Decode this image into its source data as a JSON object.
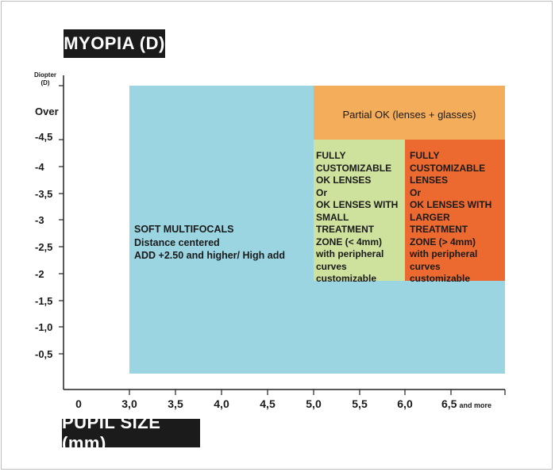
{
  "chart_data": {
    "type": "region-chart",
    "title": "MYOPIA (D)",
    "ylabel_line1": "Diopter",
    "ylabel_line2": "(D)",
    "xlabel": "PUPIL SIZE (mm)",
    "x_ticks": [
      {
        "label": "0",
        "suffix": ""
      },
      {
        "label": "3,0",
        "suffix": ""
      },
      {
        "label": "3,5",
        "suffix": ""
      },
      {
        "label": "4,0",
        "suffix": ""
      },
      {
        "label": "4,5",
        "suffix": ""
      },
      {
        "label": "5,0",
        "suffix": ""
      },
      {
        "label": "5,5",
        "suffix": ""
      },
      {
        "label": "6,0",
        "suffix": ""
      },
      {
        "label": "6,5",
        "suffix": "and more"
      }
    ],
    "y_ticks": [
      "Over",
      "-4,5",
      "-4",
      "-3,5",
      "-3",
      "-2,5",
      "-2",
      "-1,5",
      "-1,0",
      "-0,5"
    ],
    "regions": [
      {
        "name": "soft-multifocals",
        "color": "#9bd5e2",
        "x_from": "3,0",
        "x_to": "6,5 and more",
        "y_from": "0",
        "y_to": "Over",
        "text": "SOFT MULTIFOCALS\nDistance centered\nADD +2.50 and higher/ High add"
      },
      {
        "name": "partial-ok",
        "color": "#f4ad5b",
        "x_from": "5,0",
        "x_to": "6,5 and more",
        "y_from": "-4,5",
        "y_to": "Over",
        "text": "Partial OK (lenses + glasses)"
      },
      {
        "name": "small-zone",
        "color": "#cfe29d",
        "x_from": "5,0",
        "x_to": "6,0",
        "y_from": "-2",
        "y_to": "-4,5",
        "text": "FULLY\nCUSTOMIZABLE\nOK LENSES\nOr\nOK LENSES WITH\nSMALL TREATMENT\nZONE (< 4mm)\nwith peripheral\ncurves\ncustomizable"
      },
      {
        "name": "larger-zone",
        "color": "#ec6a30",
        "x_from": "6,0",
        "x_to": "6,5 and more",
        "y_from": "-2",
        "y_to": "-4,5",
        "text": "FULLY\nCUSTOMIZABLE\nLENSES\nOr\nOK LENSES WITH\nLARGER TREATMENT\nZONE (> 4mm)\nwith peripheral\ncurves\ncustomizable"
      }
    ]
  }
}
